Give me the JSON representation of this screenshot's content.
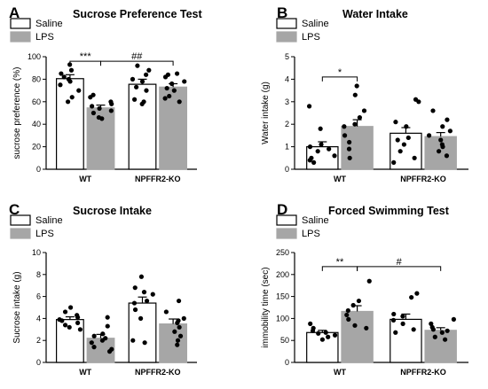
{
  "colors": {
    "saline_fill": "#ffffff",
    "lps_fill": "#a6a6a6",
    "stroke": "#000000",
    "dot": "#000000"
  },
  "chart_data": [
    {
      "panel": "A",
      "type": "bar",
      "title": "Sucrose Preference Test",
      "ylabel": "sucrose preference (%)",
      "xlabel": "",
      "ylim": [
        0,
        100
      ],
      "yticks": [
        "0",
        "20",
        "40",
        "60",
        "80",
        "100"
      ],
      "legend": [
        "Saline",
        "LPS"
      ],
      "categories": [
        "WT",
        "NPFFR2-KO"
      ],
      "series": [
        {
          "name": "Saline",
          "values": [
            80.5,
            75.5
          ],
          "errors": [
            3.5,
            4.5
          ],
          "points": [
            [
              93,
              88,
              85,
              82,
              80,
              78,
              75,
              70,
              64,
              60
            ],
            [
              92,
              88,
              84,
              80,
              78,
              73,
              70,
              62,
              60,
              58
            ]
          ]
        },
        {
          "name": "LPS",
          "values": [
            54.5,
            73
          ],
          "errors": [
            2.5,
            3
          ],
          "points": [
            [
              66,
              64,
              60,
              58,
              56,
              54,
              52,
              50,
              46,
              45
            ],
            [
              85,
              84,
              82,
              78,
              76,
              72,
              70,
              65,
              63,
              60
            ]
          ]
        }
      ],
      "annotations": [
        {
          "label": "***",
          "from": [
            0,
            0
          ],
          "to": [
            0,
            1
          ],
          "y": 96
        },
        {
          "label": "##",
          "from": [
            0,
            1
          ],
          "to": [
            1,
            1
          ],
          "y": 96
        }
      ]
    },
    {
      "panel": "B",
      "type": "bar",
      "title": "Water Intake",
      "ylabel": "Water intake (g)",
      "xlabel": "",
      "ylim": [
        0,
        5
      ],
      "yticks": [
        "0",
        "1",
        "2",
        "3",
        "4",
        "5"
      ],
      "legend": [
        "Saline",
        "LPS"
      ],
      "categories": [
        "WT",
        "NPFFR2-KO"
      ],
      "series": [
        {
          "name": "Saline",
          "values": [
            1.0,
            1.6
          ],
          "errors": [
            0.22,
            0.25
          ],
          "points": [
            [
              2.8,
              1.8,
              1.1,
              1.0,
              0.9,
              0.8,
              0.6,
              0.5,
              0.4,
              0.3
            ],
            [
              3.1,
              3.0,
              2.1,
              1.9,
              1.4,
              1.3,
              1.1,
              0.8,
              0.5,
              0.3
            ]
          ]
        },
        {
          "name": "LPS",
          "values": [
            1.9,
            1.45
          ],
          "errors": [
            0.3,
            0.18
          ],
          "points": [
            [
              3.7,
              3.3,
              2.6,
              2.3,
              2.0,
              1.9,
              1.5,
              1.2,
              0.9,
              0.5
            ],
            [
              2.6,
              2.2,
              1.9,
              1.7,
              1.5,
              1.3,
              1.1,
              1.0,
              0.8,
              0.6
            ]
          ]
        }
      ],
      "annotations": [
        {
          "label": "*",
          "from": [
            0,
            0
          ],
          "to": [
            0,
            1
          ],
          "y": 4.1
        }
      ]
    },
    {
      "panel": "C",
      "type": "bar",
      "title": "Sucrose Intake",
      "ylabel": "Sucrose intake (g)",
      "xlabel": "",
      "ylim": [
        0,
        10
      ],
      "yticks": [
        "0",
        "2",
        "4",
        "6",
        "8",
        "10"
      ],
      "legend": [
        "Saline",
        "LPS"
      ],
      "categories": [
        "WT",
        "NPFFR2-KO"
      ],
      "series": [
        {
          "name": "Saline",
          "values": [
            3.9,
            5.4
          ],
          "errors": [
            0.25,
            0.55
          ],
          "points": [
            [
              5.0,
              4.6,
              4.3,
              4.1,
              3.9,
              3.8,
              3.6,
              3.4,
              3.2,
              3.0
            ],
            [
              7.8,
              6.8,
              6.4,
              6.2,
              5.6,
              5.4,
              4.8,
              4.0,
              2.0,
              1.8
            ]
          ]
        },
        {
          "name": "LPS",
          "values": [
            2.2,
            3.5
          ],
          "errors": [
            0.35,
            0.45
          ],
          "points": [
            [
              4.1,
              3.3,
              2.6,
              2.4,
              2.2,
              2.0,
              1.8,
              1.4,
              1.2,
              1.0
            ],
            [
              5.6,
              4.6,
              4.0,
              3.8,
              3.6,
              3.2,
              2.8,
              2.4,
              2.0,
              1.6
            ]
          ]
        }
      ],
      "annotations": []
    },
    {
      "panel": "D",
      "type": "bar",
      "title": "Forced Swimming Test",
      "ylabel": "immobility time (sec)",
      "xlabel": "",
      "ylim": [
        0,
        250
      ],
      "yticks": [
        "0",
        "50",
        "100",
        "150",
        "200",
        "250"
      ],
      "legend": [
        "Saline",
        "LPS"
      ],
      "categories": [
        "WT",
        "NPFFR2-KO"
      ],
      "series": [
        {
          "name": "Saline",
          "values": [
            68,
            98
          ],
          "errors": [
            5,
            12
          ],
          "points": [
            [
              88,
              78,
              72,
              68,
              66,
              62,
              58,
              52
            ],
            [
              157,
              148,
              110,
              105,
              96,
              88,
              75,
              68
            ]
          ]
        },
        {
          "name": "LPS",
          "values": [
            116,
            73
          ],
          "errors": [
            13,
            6
          ],
          "points": [
            [
              185,
              140,
              130,
              118,
              108,
              98,
              84,
              78
            ],
            [
              98,
              88,
              80,
              75,
              72,
              68,
              58,
              52
            ]
          ]
        }
      ],
      "annotations": [
        {
          "label": "**",
          "from": [
            0,
            0
          ],
          "to": [
            0,
            1
          ],
          "y": 218
        },
        {
          "label": "#",
          "from": [
            0,
            1
          ],
          "to": [
            1,
            1
          ],
          "y": 218
        }
      ]
    }
  ]
}
